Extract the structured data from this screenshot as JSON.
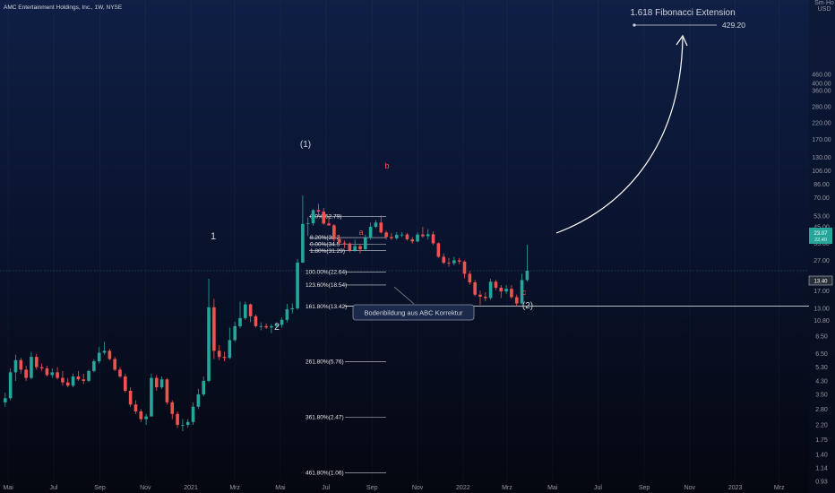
{
  "header": {
    "symbol_line": "AMC Entertainment Holdings, Inc., 1W, NYSE"
  },
  "price_axis": {
    "currency_top": "Sm·Ho",
    "currency": "USD",
    "ticks": [
      "460.00",
      "400.00",
      "360.00",
      "280.00",
      "220.00",
      "170.00",
      "130.00",
      "106.00",
      "86.00",
      "70.00",
      "53.00",
      "45.00",
      "35.00",
      "27.00",
      "17.00",
      "13.00",
      "10.80",
      "8.50",
      "6.50",
      "5.30",
      "4.30",
      "3.50",
      "2.80",
      "2.20",
      "1.75",
      "1.40",
      "1.14",
      "0.93"
    ],
    "current_price_label": "23.07",
    "current_price_sub": "22.40",
    "level_label": "13.40"
  },
  "time_axis": {
    "ticks": [
      "Mai",
      "Jul",
      "Sep",
      "Nov",
      "2021",
      "Mrz",
      "Mai",
      "Jul",
      "Sep",
      "Nov",
      "2022",
      "Mrz",
      "Mai",
      "Jul",
      "Sep",
      "Nov",
      "2023",
      "Mrz"
    ]
  },
  "annotations": {
    "fib_ext_title": "1.618 Fibonacci Extension",
    "fib_ext_value": "429.20",
    "wave_1": "1",
    "wave_2": "2",
    "wave_big_1": "(1)",
    "wave_big_2": "(2)",
    "wave_a": "a",
    "wave_b": "b",
    "wave_c": "c",
    "callout": "Bodenbildung aus ABC Korrektur"
  },
  "fib_retracement": [
    {
      "text": "0.0%(52.79)",
      "price": 52.79
    },
    {
      "text": "8.20%(38.2",
      "price": 38.2
    },
    {
      "text": "0.00%(34.5",
      "price": 34.5
    },
    {
      "text": "1.80%(31.29)",
      "price": 31.29
    }
  ],
  "fib_extension": [
    {
      "text": "100.00%(22.64)",
      "price": 22.64
    },
    {
      "text": "123.60%(18.54)",
      "price": 18.54
    },
    {
      "text": "161.80%(13.42)",
      "price": 13.42
    },
    {
      "text": "261.80%(5.76)",
      "price": 5.76
    },
    {
      "text": "361.80%(2.47)",
      "price": 2.47
    },
    {
      "text": "461.80%(1.06)",
      "price": 1.06
    }
  ],
  "colors": {
    "up": "#26a69a",
    "down": "#ef5350",
    "wave_red": "#ef5350",
    "text": "#d1d4dc"
  },
  "chart_data": {
    "type": "candlestick",
    "title": "AMC Entertainment Holdings, Inc., 1W, NYSE",
    "yscale": "log",
    "ylim": [
      0.93,
      520
    ],
    "x_range": [
      "2020-04-20",
      "2023-04-10"
    ],
    "candles": [
      {
        "t": "2020-04-27",
        "o": 3.1,
        "h": 3.6,
        "l": 2.9,
        "c": 3.3
      },
      {
        "t": "2020-05-04",
        "o": 3.3,
        "h": 5.2,
        "l": 3.2,
        "c": 4.9
      },
      {
        "t": "2020-05-11",
        "o": 4.9,
        "h": 6.4,
        "l": 4.3,
        "c": 5.9
      },
      {
        "t": "2020-05-18",
        "o": 5.9,
        "h": 6.1,
        "l": 4.8,
        "c": 5.1
      },
      {
        "t": "2020-05-25",
        "o": 5.1,
        "h": 5.4,
        "l": 4.3,
        "c": 4.5
      },
      {
        "t": "2020-06-01",
        "o": 4.5,
        "h": 6.7,
        "l": 4.4,
        "c": 6.2
      },
      {
        "t": "2020-06-08",
        "o": 6.2,
        "h": 6.5,
        "l": 5.1,
        "c": 5.3
      },
      {
        "t": "2020-06-15",
        "o": 5.3,
        "h": 5.6,
        "l": 5.0,
        "c": 5.2
      },
      {
        "t": "2020-06-22",
        "o": 5.2,
        "h": 5.4,
        "l": 4.6,
        "c": 4.7
      },
      {
        "t": "2020-06-29",
        "o": 4.7,
        "h": 5.2,
        "l": 4.5,
        "c": 4.9
      },
      {
        "t": "2020-07-06",
        "o": 4.9,
        "h": 5.3,
        "l": 4.4,
        "c": 4.5
      },
      {
        "t": "2020-07-13",
        "o": 4.5,
        "h": 5.0,
        "l": 4.0,
        "c": 4.2
      },
      {
        "t": "2020-07-20",
        "o": 4.2,
        "h": 4.5,
        "l": 3.9,
        "c": 4.0
      },
      {
        "t": "2020-07-27",
        "o": 4.0,
        "h": 4.8,
        "l": 3.9,
        "c": 4.6
      },
      {
        "t": "2020-08-03",
        "o": 4.6,
        "h": 5.0,
        "l": 4.3,
        "c": 4.4
      },
      {
        "t": "2020-08-10",
        "o": 4.4,
        "h": 4.8,
        "l": 4.1,
        "c": 4.3
      },
      {
        "t": "2020-08-17",
        "o": 4.3,
        "h": 5.1,
        "l": 4.2,
        "c": 5.0
      },
      {
        "t": "2020-08-24",
        "o": 5.0,
        "h": 6.0,
        "l": 4.9,
        "c": 5.8
      },
      {
        "t": "2020-08-31",
        "o": 5.8,
        "h": 7.2,
        "l": 5.6,
        "c": 6.6
      },
      {
        "t": "2020-09-07",
        "o": 6.6,
        "h": 7.8,
        "l": 6.4,
        "c": 6.8
      },
      {
        "t": "2020-09-14",
        "o": 6.8,
        "h": 7.0,
        "l": 5.9,
        "c": 6.0
      },
      {
        "t": "2020-09-21",
        "o": 6.0,
        "h": 6.2,
        "l": 5.0,
        "c": 5.1
      },
      {
        "t": "2020-09-28",
        "o": 5.1,
        "h": 5.3,
        "l": 4.5,
        "c": 4.6
      },
      {
        "t": "2020-10-05",
        "o": 4.6,
        "h": 4.8,
        "l": 3.6,
        "c": 3.7
      },
      {
        "t": "2020-10-12",
        "o": 3.7,
        "h": 3.9,
        "l": 2.9,
        "c": 3.0
      },
      {
        "t": "2020-10-19",
        "o": 3.0,
        "h": 3.2,
        "l": 2.6,
        "c": 2.7
      },
      {
        "t": "2020-10-26",
        "o": 2.7,
        "h": 2.8,
        "l": 2.3,
        "c": 2.4
      },
      {
        "t": "2020-11-02",
        "o": 2.4,
        "h": 2.6,
        "l": 2.2,
        "c": 2.5
      },
      {
        "t": "2020-11-09",
        "o": 2.5,
        "h": 4.8,
        "l": 2.5,
        "c": 4.5
      },
      {
        "t": "2020-11-16",
        "o": 4.5,
        "h": 4.7,
        "l": 3.7,
        "c": 3.9
      },
      {
        "t": "2020-11-23",
        "o": 3.9,
        "h": 4.6,
        "l": 3.8,
        "c": 4.4
      },
      {
        "t": "2020-11-30",
        "o": 4.4,
        "h": 4.5,
        "l": 3.0,
        "c": 3.1
      },
      {
        "t": "2020-12-07",
        "o": 3.1,
        "h": 3.2,
        "l": 2.4,
        "c": 2.6
      },
      {
        "t": "2020-12-14",
        "o": 2.6,
        "h": 2.7,
        "l": 2.1,
        "c": 2.2
      },
      {
        "t": "2020-12-21",
        "o": 2.2,
        "h": 2.4,
        "l": 2.0,
        "c": 2.2
      },
      {
        "t": "2020-12-28",
        "o": 2.2,
        "h": 2.4,
        "l": 2.1,
        "c": 2.3
      },
      {
        "t": "2021-01-04",
        "o": 2.3,
        "h": 3.1,
        "l": 2.2,
        "c": 2.9
      },
      {
        "t": "2021-01-11",
        "o": 2.9,
        "h": 3.8,
        "l": 2.8,
        "c": 3.5
      },
      {
        "t": "2021-01-18",
        "o": 3.5,
        "h": 4.6,
        "l": 3.4,
        "c": 4.3
      },
      {
        "t": "2021-01-25",
        "o": 4.3,
        "h": 20.4,
        "l": 4.2,
        "c": 13.2
      },
      {
        "t": "2021-02-01",
        "o": 13.2,
        "h": 15.0,
        "l": 6.0,
        "c": 6.8
      },
      {
        "t": "2021-02-08",
        "o": 6.8,
        "h": 7.4,
        "l": 5.9,
        "c": 6.2
      },
      {
        "t": "2021-02-15",
        "o": 6.2,
        "h": 6.7,
        "l": 5.8,
        "c": 6.1
      },
      {
        "t": "2021-02-22",
        "o": 6.1,
        "h": 9.7,
        "l": 6.0,
        "c": 8.0
      },
      {
        "t": "2021-03-01",
        "o": 8.0,
        "h": 10.6,
        "l": 7.8,
        "c": 9.9
      },
      {
        "t": "2021-03-08",
        "o": 9.9,
        "h": 14.4,
        "l": 9.6,
        "c": 11.2
      },
      {
        "t": "2021-03-15",
        "o": 11.2,
        "h": 14.4,
        "l": 10.9,
        "c": 13.8
      },
      {
        "t": "2021-03-22",
        "o": 13.8,
        "h": 14.0,
        "l": 10.5,
        "c": 11.5
      },
      {
        "t": "2021-03-29",
        "o": 11.5,
        "h": 11.8,
        "l": 9.7,
        "c": 9.9
      },
      {
        "t": "2021-04-05",
        "o": 9.9,
        "h": 10.5,
        "l": 9.3,
        "c": 9.9
      },
      {
        "t": "2021-04-12",
        "o": 9.9,
        "h": 10.3,
        "l": 9.5,
        "c": 9.7
      },
      {
        "t": "2021-04-19",
        "o": 9.7,
        "h": 10.2,
        "l": 8.9,
        "c": 9.9
      },
      {
        "t": "2021-04-26",
        "o": 9.9,
        "h": 10.5,
        "l": 9.6,
        "c": 10.1
      },
      {
        "t": "2021-05-03",
        "o": 10.1,
        "h": 11.3,
        "l": 9.7,
        "c": 10.9
      },
      {
        "t": "2021-05-10",
        "o": 10.9,
        "h": 13.9,
        "l": 10.5,
        "c": 12.8
      },
      {
        "t": "2021-05-17",
        "o": 12.8,
        "h": 14.0,
        "l": 12.0,
        "c": 13.0
      },
      {
        "t": "2021-05-24",
        "o": 13.0,
        "h": 27.5,
        "l": 12.7,
        "c": 26.1
      },
      {
        "t": "2021-05-31",
        "o": 26.1,
        "h": 72.6,
        "l": 26.0,
        "c": 47.0
      },
      {
        "t": "2021-06-07",
        "o": 47.0,
        "h": 52.0,
        "l": 39.1,
        "c": 47.5
      },
      {
        "t": "2021-06-14",
        "o": 47.5,
        "h": 59.0,
        "l": 45.8,
        "c": 58.0
      },
      {
        "t": "2021-06-21",
        "o": 58.0,
        "h": 63.9,
        "l": 54.0,
        "c": 56.7
      },
      {
        "t": "2021-06-28",
        "o": 56.7,
        "h": 60.0,
        "l": 46.5,
        "c": 47.3
      },
      {
        "t": "2021-07-05",
        "o": 47.3,
        "h": 52.0,
        "l": 45.8,
        "c": 46.0
      },
      {
        "t": "2021-07-12",
        "o": 46.0,
        "h": 47.0,
        "l": 36.0,
        "c": 37.5
      },
      {
        "t": "2021-07-19",
        "o": 37.5,
        "h": 40.0,
        "l": 34.0,
        "c": 35.3
      },
      {
        "t": "2021-07-26",
        "o": 35.3,
        "h": 36.5,
        "l": 32.5,
        "c": 34.9
      },
      {
        "t": "2021-08-02",
        "o": 34.9,
        "h": 35.5,
        "l": 30.5,
        "c": 31.3
      },
      {
        "t": "2021-08-09",
        "o": 31.3,
        "h": 37.0,
        "l": 30.8,
        "c": 33.5
      },
      {
        "t": "2021-08-16",
        "o": 33.5,
        "h": 34.3,
        "l": 30.0,
        "c": 32.0
      },
      {
        "t": "2021-08-23",
        "o": 32.0,
        "h": 40.0,
        "l": 31.5,
        "c": 38.0
      },
      {
        "t": "2021-08-30",
        "o": 38.0,
        "h": 48.0,
        "l": 37.0,
        "c": 45.0
      },
      {
        "t": "2021-09-06",
        "o": 45.0,
        "h": 50.0,
        "l": 44.0,
        "c": 48.0
      },
      {
        "t": "2021-09-13",
        "o": 48.0,
        "h": 53.5,
        "l": 40.5,
        "c": 41.3
      },
      {
        "t": "2021-09-20",
        "o": 41.3,
        "h": 42.5,
        "l": 37.0,
        "c": 38.5
      },
      {
        "t": "2021-09-27",
        "o": 38.5,
        "h": 41.0,
        "l": 36.8,
        "c": 37.8
      },
      {
        "t": "2021-10-04",
        "o": 37.8,
        "h": 41.5,
        "l": 37.0,
        "c": 39.8
      },
      {
        "t": "2021-10-11",
        "o": 39.8,
        "h": 41.5,
        "l": 38.5,
        "c": 40.0
      },
      {
        "t": "2021-10-18",
        "o": 40.0,
        "h": 41.0,
        "l": 36.5,
        "c": 37.2
      },
      {
        "t": "2021-10-25",
        "o": 37.2,
        "h": 38.5,
        "l": 34.8,
        "c": 36.0
      },
      {
        "t": "2021-11-01",
        "o": 36.0,
        "h": 41.5,
        "l": 35.5,
        "c": 40.0
      },
      {
        "t": "2021-11-08",
        "o": 40.0,
        "h": 45.0,
        "l": 38.0,
        "c": 39.0
      },
      {
        "t": "2021-11-15",
        "o": 39.0,
        "h": 43.5,
        "l": 37.0,
        "c": 40.2
      },
      {
        "t": "2021-11-22",
        "o": 40.2,
        "h": 42.0,
        "l": 34.0,
        "c": 35.0
      },
      {
        "t": "2021-11-29",
        "o": 35.0,
        "h": 35.5,
        "l": 28.0,
        "c": 28.5
      },
      {
        "t": "2021-12-06",
        "o": 28.5,
        "h": 30.0,
        "l": 25.5,
        "c": 26.0
      },
      {
        "t": "2021-12-13",
        "o": 26.0,
        "h": 28.0,
        "l": 24.5,
        "c": 25.8
      },
      {
        "t": "2021-12-20",
        "o": 25.8,
        "h": 28.5,
        "l": 25.0,
        "c": 27.0
      },
      {
        "t": "2021-12-27",
        "o": 27.0,
        "h": 28.0,
        "l": 25.5,
        "c": 26.5
      },
      {
        "t": "2022-01-03",
        "o": 26.5,
        "h": 27.0,
        "l": 20.5,
        "c": 22.0
      },
      {
        "t": "2022-01-10",
        "o": 22.0,
        "h": 23.0,
        "l": 18.6,
        "c": 19.3
      },
      {
        "t": "2022-01-17",
        "o": 19.3,
        "h": 20.0,
        "l": 15.6,
        "c": 16.0
      },
      {
        "t": "2022-01-24",
        "o": 16.0,
        "h": 17.0,
        "l": 13.7,
        "c": 15.5
      },
      {
        "t": "2022-01-31",
        "o": 15.5,
        "h": 16.6,
        "l": 14.5,
        "c": 15.2
      },
      {
        "t": "2022-02-07",
        "o": 15.2,
        "h": 20.4,
        "l": 14.8,
        "c": 19.5
      },
      {
        "t": "2022-02-14",
        "o": 19.5,
        "h": 20.0,
        "l": 17.2,
        "c": 17.8
      },
      {
        "t": "2022-02-21",
        "o": 17.8,
        "h": 18.5,
        "l": 15.2,
        "c": 16.8
      },
      {
        "t": "2022-02-28",
        "o": 16.8,
        "h": 18.5,
        "l": 16.2,
        "c": 17.5
      },
      {
        "t": "2022-03-07",
        "o": 17.5,
        "h": 18.5,
        "l": 15.0,
        "c": 15.4
      },
      {
        "t": "2022-03-14",
        "o": 15.4,
        "h": 16.0,
        "l": 13.4,
        "c": 14.0
      },
      {
        "t": "2022-03-21",
        "o": 14.0,
        "h": 22.0,
        "l": 13.8,
        "c": 20.0
      },
      {
        "t": "2022-03-28",
        "o": 20.0,
        "h": 34.3,
        "l": 19.5,
        "c": 23.07
      }
    ]
  }
}
